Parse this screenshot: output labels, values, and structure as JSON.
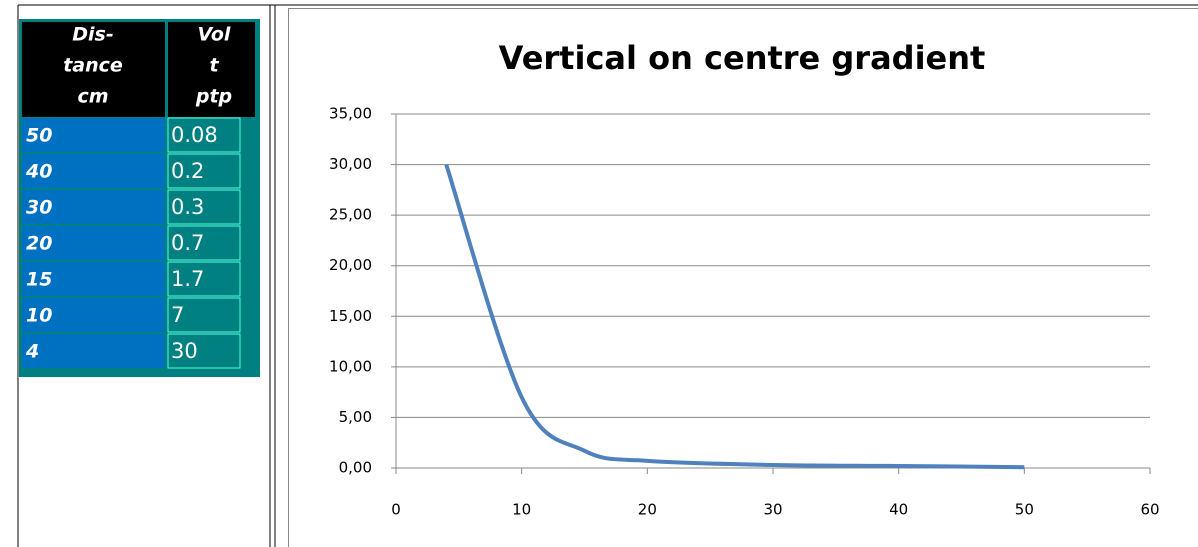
{
  "table": {
    "header": [
      [
        "Dis-",
        "tance",
        "cm"
      ],
      [
        "Vol",
        "t",
        "ptp"
      ]
    ],
    "rows": [
      [
        "50",
        "0.08"
      ],
      [
        "40",
        "0.2"
      ],
      [
        "30",
        "0.3"
      ],
      [
        "20",
        "0.7"
      ],
      [
        "15",
        "1.7"
      ],
      [
        "10",
        "7"
      ],
      [
        "4",
        "30"
      ]
    ]
  },
  "chart_data": {
    "type": "line",
    "title": "Vertical on centre gradient",
    "x": [
      4,
      10,
      15,
      20,
      30,
      40,
      50
    ],
    "series": [
      {
        "name": "Volt ptp",
        "color": "#4f81bd",
        "values": [
          30,
          7,
          1.7,
          0.7,
          0.3,
          0.2,
          0.08
        ]
      }
    ],
    "xlim": [
      0,
      60
    ],
    "xticks": [
      0,
      10,
      20,
      30,
      40,
      50,
      60
    ],
    "ylim": [
      0,
      35
    ],
    "yticks": [
      {
        "value": 0,
        "label": "0,00"
      },
      {
        "value": 5,
        "label": "5,00"
      },
      {
        "value": 10,
        "label": "10,00"
      },
      {
        "value": 15,
        "label": "15,00"
      },
      {
        "value": 20,
        "label": "20,00"
      },
      {
        "value": 25,
        "label": "25,00"
      },
      {
        "value": 30,
        "label": "30,00"
      },
      {
        "value": 35,
        "label": "35,00"
      }
    ],
    "grid": true,
    "legend": false
  }
}
